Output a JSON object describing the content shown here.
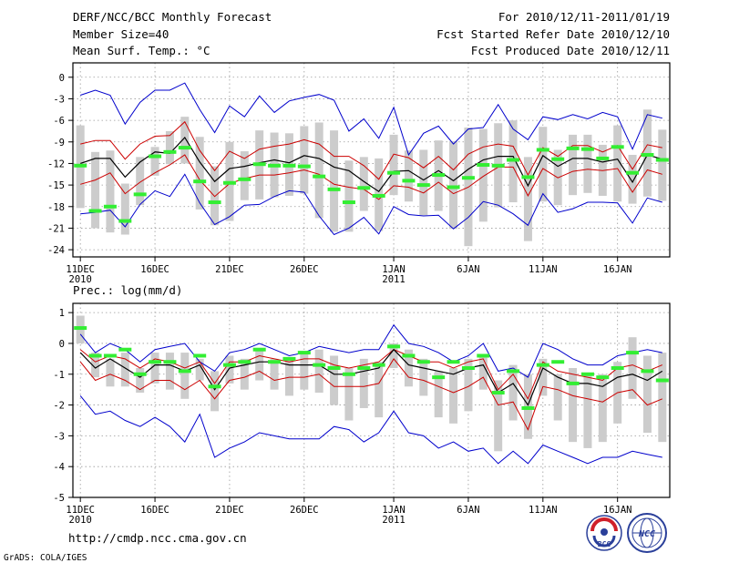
{
  "header": {
    "title": "DERF/NCC/BCC Monthly Forecast",
    "member_size": "Member Size=40",
    "var_temp": "Mean Surf. Temp.: °C",
    "for_range": "For 2010/12/11-2011/01/19",
    "fcst_started": "Fcst Started Refer Date 2010/12/10",
    "fcst_produced": "Fcst Produced Date 2010/12/11"
  },
  "footer": {
    "url": "http://cmdp.ncc.cma.gov.cn",
    "credit": "GrADS: COLA/IGES",
    "logo_bcc": "BCC",
    "logo_ncc": "NCC"
  },
  "colors": {
    "envelope": "#0000cc",
    "spread": "#cc0000",
    "mean": "#000000",
    "observed": "#33ee33",
    "bar": "#cccccc"
  },
  "chart_data": [
    {
      "type": "line",
      "title": "Mean Surf. Temp.: °C",
      "ylim": [
        -25,
        2
      ],
      "yticks": [
        0,
        -3,
        -6,
        -9,
        -12,
        -15,
        -18,
        -21,
        -24
      ],
      "ytick_labels": [
        "0",
        "-3",
        "-6",
        "-9",
        "-12",
        "-15",
        "-18",
        "-21",
        "-24"
      ],
      "xlim": [
        0.5,
        40.5
      ],
      "xticks": [
        {
          "day": 1,
          "label": "11DEC",
          "sub": "2010"
        },
        {
          "day": 6,
          "label": "16DEC"
        },
        {
          "day": 11,
          "label": "21DEC"
        },
        {
          "day": 16,
          "label": "26DEC"
        },
        {
          "day": 22,
          "label": "1JAN",
          "sub": "2011"
        },
        {
          "day": 27,
          "label": "6JAN"
        },
        {
          "day": 32,
          "label": "11JAN"
        },
        {
          "day": 37,
          "label": "16JAN"
        }
      ],
      "grid": true,
      "days": [
        1,
        2,
        3,
        4,
        5,
        6,
        7,
        8,
        9,
        10,
        11,
        12,
        13,
        14,
        15,
        16,
        17,
        18,
        19,
        20,
        21,
        22,
        23,
        24,
        25,
        26,
        27,
        28,
        29,
        30,
        31,
        32,
        33,
        34,
        35,
        36,
        37,
        38,
        39,
        40
      ],
      "series": [
        {
          "name": "max",
          "color": "#0000cc",
          "values": [
            -2.5,
            -1.8,
            -2.5,
            -6.5,
            -3.5,
            -1.8,
            -1.8,
            -0.8,
            -4.5,
            -7.7,
            -4,
            -5.5,
            -2.6,
            -4.9,
            -3.3,
            -2.8,
            -2.4,
            -3.2,
            -7.5,
            -5.8,
            -8.5,
            -4.2,
            -10.8,
            -7.8,
            -6.8,
            -9.3,
            -7.2,
            -7,
            -3.8,
            -7.2,
            -8.7,
            -5.5,
            -5.9,
            -5.2,
            -5.8,
            -4.9,
            -5.5,
            -10,
            -5.2,
            -5.7
          ]
        },
        {
          "name": "upper",
          "color": "#cc0000",
          "values": [
            -9.3,
            -8.8,
            -8.8,
            -11.4,
            -9.3,
            -8.2,
            -8.1,
            -6.2,
            -10.2,
            -13,
            -10.3,
            -11.3,
            -10,
            -9.6,
            -9.3,
            -8.7,
            -9.3,
            -11,
            -11,
            -12.3,
            -14.2,
            -10.7,
            -11.2,
            -12.6,
            -11,
            -12.9,
            -10.7,
            -9.7,
            -9.3,
            -9.6,
            -13.6,
            -9.8,
            -11,
            -9.5,
            -9.5,
            -10.4,
            -9.5,
            -12.8,
            -9.4,
            -9.8
          ]
        },
        {
          "name": "mean",
          "color": "#000000",
          "values": [
            -12,
            -11.3,
            -11.3,
            -13.9,
            -11.8,
            -10.4,
            -10.6,
            -8.4,
            -11.8,
            -14.5,
            -12.7,
            -12.4,
            -11.9,
            -11.5,
            -11.9,
            -10.9,
            -11.3,
            -12.5,
            -13,
            -14.5,
            -15.9,
            -13.1,
            -13,
            -14.3,
            -13,
            -14.4,
            -12.8,
            -11.5,
            -11,
            -11,
            -15.1,
            -10.9,
            -12.4,
            -11.3,
            -11.3,
            -11.8,
            -11.4,
            -14.6,
            -10.8,
            -11.4
          ]
        },
        {
          "name": "lower",
          "color": "#cc0000",
          "values": [
            -14.9,
            -14.3,
            -13.3,
            -16.2,
            -14.6,
            -13.3,
            -12.2,
            -10.8,
            -14.3,
            -16.6,
            -14.8,
            -14.1,
            -13.6,
            -13.6,
            -13.3,
            -12.9,
            -13.5,
            -14.9,
            -15.3,
            -15.6,
            -17,
            -15.1,
            -15.3,
            -16.1,
            -14.6,
            -16.2,
            -15.3,
            -13.8,
            -12.5,
            -12.5,
            -16.5,
            -12.7,
            -14,
            -13.1,
            -12.8,
            -13,
            -12.7,
            -16,
            -12.9,
            -13.5
          ]
        },
        {
          "name": "min",
          "color": "#0000cc",
          "values": [
            -19,
            -18.8,
            -18.5,
            -20.8,
            -17.7,
            -15.8,
            -16.6,
            -13.5,
            -17.5,
            -20.5,
            -19.4,
            -17.8,
            -17.7,
            -16.6,
            -15.8,
            -16,
            -19.3,
            -21.9,
            -21,
            -19.5,
            -21.8,
            -18,
            -19.1,
            -19.3,
            -19.2,
            -21.1,
            -19.5,
            -17.3,
            -17.8,
            -19,
            -20.6,
            -16.2,
            -18.8,
            -18.3,
            -17.4,
            -17.4,
            -17.5,
            -20.3,
            -16.8,
            -17.4
          ]
        },
        {
          "name": "observed",
          "color": "#33ee33",
          "values": [
            -12.3,
            -18.6,
            -18,
            -20,
            -16.3,
            -11,
            -10.4,
            -9.8,
            -14.5,
            -17.4,
            -14.7,
            -14.2,
            -12.1,
            -12.3,
            -12.3,
            -12.4,
            -13.8,
            -15.6,
            -17.4,
            -15.4,
            -16.5,
            -13.3,
            -14.4,
            -15,
            -13.6,
            -15.3,
            -14,
            -12.2,
            -12.3,
            -11.5,
            -13.9,
            -10.1,
            -11.4,
            -9.9,
            -10,
            -11.3,
            -9.7,
            -13.3,
            -10.8,
            -11.5
          ]
        },
        {
          "name": "bar_top",
          "color": "#cccccc",
          "values": [
            -6.7,
            -10.4,
            -10.2,
            -14.8,
            -11.1,
            -9.7,
            -7.5,
            -5.5,
            -8.3,
            -12.4,
            -9,
            -10.3,
            -7.4,
            -7.7,
            -7.8,
            -6.8,
            -6.3,
            -7.4,
            -11.6,
            -11.1,
            -11.3,
            -8,
            -10.2,
            -10.1,
            -8.8,
            -8.9,
            -7,
            -7.2,
            -6.4,
            -6,
            -11.1,
            -6.9,
            -10.1,
            -8,
            -8,
            -9.4,
            -6.7,
            -10.8,
            -4.5,
            -7.3
          ]
        },
        {
          "name": "bar_bottom",
          "color": "#cccccc",
          "values": [
            -18.2,
            -21,
            -21.6,
            -21.9,
            -17.8,
            -13.7,
            -12.1,
            -12,
            -18.4,
            -20.6,
            -20,
            -17.1,
            -17,
            -16.7,
            -16.5,
            -16.2,
            -19.6,
            -21.5,
            -21.5,
            -18.6,
            -21.4,
            -16.4,
            -17.3,
            -19.2,
            -18.6,
            -21.1,
            -23.5,
            -20.1,
            -18.1,
            -17.4,
            -22.8,
            -17.3,
            -17.8,
            -16.4,
            -16.1,
            -16.5,
            -17.3,
            -17.6,
            -16.6,
            -17.2
          ]
        }
      ]
    },
    {
      "type": "line",
      "title": "Prec.: log(mm/d)",
      "ylim": [
        -5,
        1.3
      ],
      "yticks": [
        1,
        0,
        -1,
        -2,
        -3,
        -4,
        -5
      ],
      "ytick_labels": [
        "1",
        "0",
        "-1",
        "-2",
        "-3",
        "-4",
        "-5"
      ],
      "xlim": [
        0.5,
        40.5
      ],
      "xticks": [
        {
          "day": 1,
          "label": "11DEC",
          "sub": "2010"
        },
        {
          "day": 6,
          "label": "16DEC"
        },
        {
          "day": 11,
          "label": "21DEC"
        },
        {
          "day": 16,
          "label": "26DEC"
        },
        {
          "day": 22,
          "label": "1JAN",
          "sub": "2011"
        },
        {
          "day": 27,
          "label": "6JAN"
        },
        {
          "day": 32,
          "label": "11JAN"
        },
        {
          "day": 37,
          "label": "16JAN"
        }
      ],
      "grid": true,
      "days": [
        1,
        2,
        3,
        4,
        5,
        6,
        7,
        8,
        9,
        10,
        11,
        12,
        13,
        14,
        15,
        16,
        17,
        18,
        19,
        20,
        21,
        22,
        23,
        24,
        25,
        26,
        27,
        28,
        29,
        30,
        31,
        32,
        33,
        34,
        35,
        36,
        37,
        38,
        39,
        40
      ],
      "series": [
        {
          "name": "max",
          "color": "#0000cc",
          "values": [
            0.3,
            -0.3,
            0,
            -0.2,
            -0.6,
            -0.2,
            -0.1,
            0,
            -0.6,
            -0.9,
            -0.3,
            -0.2,
            0,
            -0.2,
            -0.4,
            -0.3,
            -0.1,
            -0.2,
            -0.3,
            -0.2,
            -0.2,
            0.6,
            0,
            -0.1,
            -0.3,
            -0.6,
            -0.4,
            0,
            -0.9,
            -0.8,
            -1.1,
            0,
            -0.2,
            -0.5,
            -0.7,
            -0.7,
            -0.4,
            -0.3,
            -0.2,
            -0.3
          ]
        },
        {
          "name": "upper",
          "color": "#cc0000",
          "values": [
            -0.2,
            -0.6,
            -0.4,
            -0.5,
            -0.8,
            -0.5,
            -0.6,
            -0.8,
            -0.6,
            -1.3,
            -0.6,
            -0.6,
            -0.4,
            -0.5,
            -0.6,
            -0.5,
            -0.5,
            -0.7,
            -0.8,
            -0.7,
            -0.6,
            -0.2,
            -0.4,
            -0.6,
            -0.6,
            -0.8,
            -0.6,
            -0.5,
            -1.5,
            -1,
            -1.8,
            -0.6,
            -0.9,
            -1,
            -1.1,
            -1.2,
            -0.8,
            -0.7,
            -0.9,
            -0.7
          ]
        },
        {
          "name": "mean",
          "color": "#000000",
          "values": [
            -0.3,
            -0.8,
            -0.5,
            -0.8,
            -1.1,
            -0.7,
            -0.7,
            -0.9,
            -0.7,
            -1.5,
            -0.8,
            -0.7,
            -0.6,
            -0.6,
            -0.7,
            -0.7,
            -0.7,
            -1,
            -1,
            -0.9,
            -0.8,
            -0.2,
            -0.7,
            -0.8,
            -0.9,
            -1,
            -0.8,
            -0.7,
            -1.6,
            -1.3,
            -2,
            -0.8,
            -1.1,
            -1.3,
            -1.3,
            -1.4,
            -1.1,
            -1,
            -1.2,
            -0.9
          ]
        },
        {
          "name": "lower",
          "color": "#cc0000",
          "values": [
            -0.6,
            -1.2,
            -1,
            -1.2,
            -1.5,
            -1.2,
            -1.2,
            -1.5,
            -1.2,
            -1.8,
            -1.2,
            -1.1,
            -0.9,
            -1.2,
            -1.1,
            -1.1,
            -1,
            -1.4,
            -1.4,
            -1.4,
            -1.3,
            -0.5,
            -1.1,
            -1.2,
            -1.4,
            -1.6,
            -1.4,
            -1.1,
            -2,
            -1.9,
            -2.8,
            -1.4,
            -1.5,
            -1.7,
            -1.8,
            -1.9,
            -1.6,
            -1.5,
            -2,
            -1.8
          ]
        },
        {
          "name": "min",
          "color": "#0000cc",
          "values": [
            -1.7,
            -2.3,
            -2.2,
            -2.5,
            -2.7,
            -2.4,
            -2.7,
            -3.2,
            -2.3,
            -3.7,
            -3.4,
            -3.2,
            -2.9,
            -3,
            -3.1,
            -3.1,
            -3.1,
            -2.7,
            -2.8,
            -3.2,
            -2.9,
            -2.2,
            -2.9,
            -3,
            -3.4,
            -3.2,
            -3.5,
            -3.4,
            -3.9,
            -3.5,
            -3.9,
            -3.3,
            -3.5,
            -3.7,
            -3.9,
            -3.7,
            -3.7,
            -3.5,
            -3.6,
            -3.7
          ]
        },
        {
          "name": "observed",
          "color": "#33ee33",
          "values": [
            0.5,
            -0.4,
            -0.4,
            -0.2,
            -1,
            -0.6,
            -0.6,
            -0.9,
            -0.4,
            -1.4,
            -0.7,
            -0.6,
            -0.2,
            -0.6,
            -0.5,
            -0.3,
            -0.7,
            -0.8,
            -1,
            -0.8,
            -0.7,
            -0.1,
            -0.4,
            -0.6,
            -1.1,
            -0.6,
            -0.8,
            -0.4,
            -1.6,
            -0.9,
            -2.1,
            -0.7,
            -0.6,
            -1.3,
            -1,
            -1.1,
            -0.8,
            -0.3,
            -0.9,
            -1.2
          ]
        },
        {
          "name": "bar_top",
          "color": "#cccccc",
          "values": [
            0.9,
            -0.3,
            -0.5,
            -0.3,
            -0.8,
            -0.3,
            -0.3,
            -0.3,
            -0.5,
            -0.9,
            -0.4,
            -0.5,
            -0.2,
            -0.5,
            -0.5,
            -0.3,
            -0.2,
            -0.4,
            -0.8,
            -0.5,
            -0.6,
            0,
            -0.2,
            -0.5,
            -0.9,
            -0.8,
            -0.5,
            -0.4,
            -1.2,
            -0.7,
            -1,
            -0.5,
            -1,
            -0.8,
            -1,
            -1,
            -0.6,
            0.2,
            -0.4,
            -0.3
          ]
        },
        {
          "name": "bar_bottom",
          "color": "#cccccc",
          "values": [
            0,
            -1.1,
            -1.4,
            -1.4,
            -1.6,
            -1.3,
            -1.5,
            -1.8,
            -1.2,
            -2.2,
            -1.3,
            -1.5,
            -1.2,
            -1.5,
            -1.7,
            -1.5,
            -1.6,
            -2,
            -2.5,
            -2.1,
            -2.4,
            -0.8,
            -1.4,
            -1.7,
            -2.4,
            -2.6,
            -2.2,
            -1.5,
            -3.5,
            -2.5,
            -3.1,
            -1.7,
            -2.5,
            -3.2,
            -3.4,
            -3.2,
            -2.6,
            -1.8,
            -2.9,
            -3.2
          ]
        }
      ]
    }
  ]
}
